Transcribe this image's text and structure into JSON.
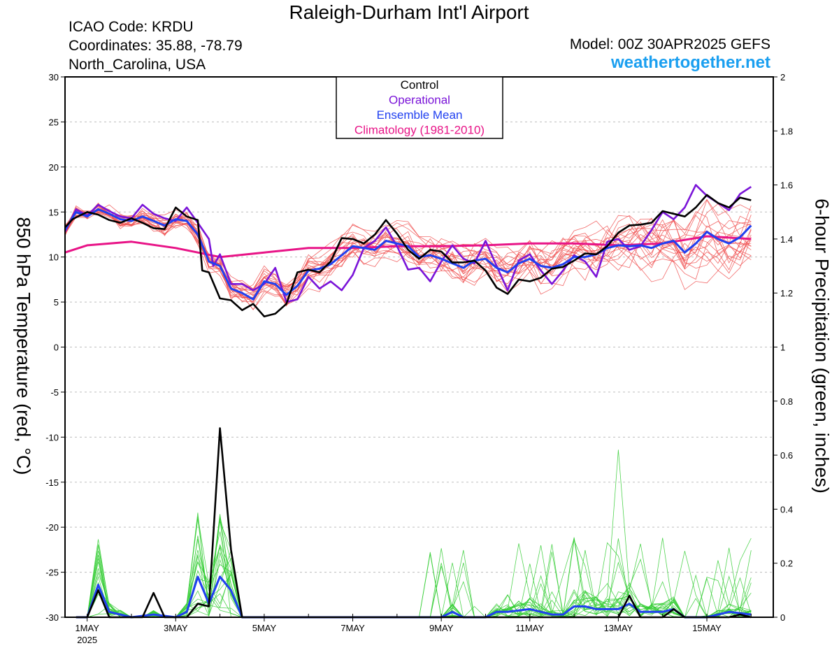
{
  "header": {
    "title": "Raleigh-Durham Int'l Airport",
    "icao": "ICAO Code: KRDU",
    "coordinates": "Coordinates: 35.88, -78.79",
    "location": "North_Carolina, USA",
    "model": "Model: 00Z 30APR2025 GEFS",
    "site": "weathertogether.net"
  },
  "colors": {
    "members_temp": "#f05050",
    "members_precip": "#33cc33",
    "control": "#000000",
    "operational": "#7a14d8",
    "ensemble_mean": "#2040f0",
    "climatology": "#e81487",
    "site": "#1a9ff0"
  },
  "chart_data": {
    "type": "line",
    "ylabel_left": "850 hPa Temperature (red, °C)",
    "ylabel_right": "6-hour Precipitation (green, inches)",
    "left_ticks": [
      "30",
      "25",
      "20",
      "15",
      "10",
      "5",
      "0",
      "-5",
      "-10",
      "-15",
      "-20",
      "-25",
      "-30"
    ],
    "right_ticks": [
      "2",
      "1.8",
      "1.6",
      "1.4",
      "1.2",
      "1",
      "0.8",
      "0.6",
      "0.4",
      "0.2",
      "0"
    ],
    "ylim_left": [
      -30,
      30
    ],
    "ylim_right": [
      0,
      2
    ],
    "x_unit": "days from 00Z 30 APR 2025",
    "xlim": [
      0.5,
      16.5
    ],
    "x_ticks": [
      {
        "x": 1,
        "label": "1MAY"
      },
      {
        "x": 3,
        "label": "3MAY"
      },
      {
        "x": 5,
        "label": "5MAY"
      },
      {
        "x": 7,
        "label": "7MAY"
      },
      {
        "x": 9,
        "label": "9MAY"
      },
      {
        "x": 11,
        "label": "11MAY"
      },
      {
        "x": 13,
        "label": "13MAY"
      },
      {
        "x": 15,
        "label": "15MAY"
      }
    ],
    "year_label": "2025",
    "legend": [
      "Control",
      "Operational",
      "Ensemble Mean",
      "Climatology (1981-2010)"
    ],
    "legend_placement": "top-center",
    "grid": "horizontal dashed",
    "temp_member_count": 20,
    "precip_member_count": 20,
    "series": [
      {
        "name": "Control",
        "kind": "temperature",
        "values": [
          [
            0.5,
            13.3
          ],
          [
            0.67,
            14.2
          ],
          [
            0.75,
            14.4
          ],
          [
            1.0,
            15.0
          ],
          [
            1.25,
            14.7
          ],
          [
            1.5,
            14.1
          ],
          [
            1.75,
            13.8
          ],
          [
            2.0,
            14.3
          ],
          [
            2.25,
            13.8
          ],
          [
            2.5,
            13.2
          ],
          [
            2.75,
            13.1
          ],
          [
            3.0,
            15.5
          ],
          [
            3.25,
            14.5
          ],
          [
            3.5,
            14.1
          ],
          [
            3.6,
            8.5
          ],
          [
            3.75,
            8.3
          ],
          [
            4.0,
            5.4
          ],
          [
            4.25,
            5.2
          ],
          [
            4.5,
            4.1
          ],
          [
            4.75,
            4.8
          ],
          [
            5.0,
            3.4
          ],
          [
            5.25,
            3.7
          ],
          [
            5.5,
            4.8
          ],
          [
            5.75,
            8.3
          ],
          [
            6.0,
            8.6
          ],
          [
            6.25,
            8.3
          ],
          [
            6.5,
            9.5
          ],
          [
            6.75,
            12.1
          ],
          [
            7.0,
            12.0
          ],
          [
            7.25,
            11.5
          ],
          [
            7.5,
            12.5
          ],
          [
            7.75,
            14.1
          ],
          [
            8.0,
            12.6
          ],
          [
            8.25,
            10.8
          ],
          [
            8.5,
            9.8
          ],
          [
            8.75,
            10.8
          ],
          [
            9.0,
            10.6
          ],
          [
            9.25,
            9.4
          ],
          [
            9.5,
            9.4
          ],
          [
            9.75,
            9.6
          ],
          [
            10.0,
            8.5
          ],
          [
            10.25,
            6.6
          ],
          [
            10.5,
            5.9
          ],
          [
            10.75,
            7.5
          ],
          [
            11.0,
            7.3
          ],
          [
            11.25,
            7.7
          ],
          [
            11.5,
            8.7
          ],
          [
            11.75,
            8.9
          ],
          [
            12.0,
            9.6
          ],
          [
            12.25,
            10.4
          ],
          [
            12.5,
            10.3
          ],
          [
            12.75,
            11.2
          ],
          [
            13.0,
            12.7
          ],
          [
            13.25,
            13.5
          ],
          [
            13.5,
            13.6
          ],
          [
            13.75,
            13.8
          ],
          [
            14.0,
            15.1
          ],
          [
            14.25,
            14.8
          ],
          [
            14.5,
            14.5
          ],
          [
            14.75,
            15.5
          ],
          [
            15.0,
            16.9
          ],
          [
            15.25,
            16.0
          ],
          [
            15.5,
            15.5
          ],
          [
            15.75,
            16.6
          ],
          [
            16.0,
            16.3
          ]
        ]
      },
      {
        "name": "Operational",
        "kind": "temperature",
        "values": [
          [
            0.5,
            12.8
          ],
          [
            0.75,
            15.3
          ],
          [
            1.0,
            14.6
          ],
          [
            1.25,
            15.8
          ],
          [
            1.5,
            15.1
          ],
          [
            1.75,
            14.5
          ],
          [
            2.0,
            14.3
          ],
          [
            2.25,
            15.8
          ],
          [
            2.5,
            14.8
          ],
          [
            2.75,
            14.3
          ],
          [
            3.0,
            14.0
          ],
          [
            3.25,
            15.5
          ],
          [
            3.5,
            13.8
          ],
          [
            3.75,
            12.0
          ],
          [
            3.85,
            9.0
          ],
          [
            4.0,
            10.3
          ],
          [
            4.25,
            7.0
          ],
          [
            4.5,
            7.0
          ],
          [
            4.75,
            6.3
          ],
          [
            5.0,
            7.0
          ],
          [
            5.25,
            8.8
          ],
          [
            5.5,
            5.0
          ],
          [
            5.75,
            5.3
          ],
          [
            6.0,
            7.8
          ],
          [
            6.25,
            6.5
          ],
          [
            6.5,
            7.3
          ],
          [
            6.75,
            6.3
          ],
          [
            7.0,
            8.0
          ],
          [
            7.25,
            11.0
          ],
          [
            7.5,
            11.8
          ],
          [
            7.75,
            13.3
          ],
          [
            8.0,
            11.2
          ],
          [
            8.25,
            8.6
          ],
          [
            8.5,
            8.8
          ],
          [
            8.75,
            7.3
          ],
          [
            9.0,
            9.5
          ],
          [
            9.25,
            11.3
          ],
          [
            9.5,
            9.8
          ],
          [
            9.75,
            9.3
          ],
          [
            10.0,
            11.8
          ],
          [
            10.25,
            9.0
          ],
          [
            10.5,
            6.3
          ],
          [
            10.75,
            9.6
          ],
          [
            11.0,
            10.3
          ],
          [
            11.25,
            8.5
          ],
          [
            11.5,
            7.0
          ],
          [
            11.75,
            8.5
          ],
          [
            12.0,
            10.2
          ],
          [
            12.25,
            9.5
          ],
          [
            12.5,
            7.8
          ],
          [
            12.75,
            11.7
          ],
          [
            13.0,
            12.0
          ],
          [
            13.25,
            10.8
          ],
          [
            13.5,
            11.2
          ],
          [
            13.75,
            13.0
          ],
          [
            14.0,
            15.0
          ],
          [
            14.25,
            14.2
          ],
          [
            14.5,
            15.5
          ],
          [
            14.75,
            18.0
          ],
          [
            15.0,
            16.8
          ],
          [
            15.25,
            16.0
          ],
          [
            15.5,
            15.2
          ],
          [
            15.75,
            17.0
          ],
          [
            16.0,
            17.8
          ]
        ]
      },
      {
        "name": "Ensemble Mean",
        "kind": "temperature",
        "values": [
          [
            0.5,
            13.0
          ],
          [
            0.75,
            15.0
          ],
          [
            1.0,
            14.5
          ],
          [
            1.25,
            15.3
          ],
          [
            1.5,
            14.8
          ],
          [
            1.75,
            14.2
          ],
          [
            2.0,
            14.0
          ],
          [
            2.25,
            14.5
          ],
          [
            2.5,
            14.0
          ],
          [
            2.75,
            13.5
          ],
          [
            3.0,
            14.2
          ],
          [
            3.25,
            14.0
          ],
          [
            3.5,
            12.5
          ],
          [
            3.75,
            9.5
          ],
          [
            4.0,
            9.0
          ],
          [
            4.25,
            6.5
          ],
          [
            4.5,
            6.0
          ],
          [
            4.75,
            5.3
          ],
          [
            5.0,
            7.3
          ],
          [
            5.25,
            7.0
          ],
          [
            5.5,
            5.8
          ],
          [
            5.75,
            6.8
          ],
          [
            6.0,
            8.5
          ],
          [
            6.25,
            8.7
          ],
          [
            6.5,
            9.2
          ],
          [
            6.75,
            10.2
          ],
          [
            7.0,
            11.2
          ],
          [
            7.25,
            11.0
          ],
          [
            7.5,
            10.8
          ],
          [
            7.75,
            11.8
          ],
          [
            8.0,
            11.5
          ],
          [
            8.25,
            11.2
          ],
          [
            8.5,
            10.0
          ],
          [
            8.75,
            10.2
          ],
          [
            9.0,
            9.8
          ],
          [
            9.25,
            9.3
          ],
          [
            9.5,
            8.8
          ],
          [
            9.75,
            9.6
          ],
          [
            10.0,
            9.8
          ],
          [
            10.25,
            8.8
          ],
          [
            10.5,
            8.3
          ],
          [
            10.75,
            9.3
          ],
          [
            11.0,
            9.8
          ],
          [
            11.25,
            9.0
          ],
          [
            11.5,
            8.8
          ],
          [
            11.75,
            9.2
          ],
          [
            12.0,
            10.0
          ],
          [
            12.25,
            10.0
          ],
          [
            12.5,
            10.3
          ],
          [
            12.75,
            11.0
          ],
          [
            13.0,
            11.3
          ],
          [
            13.25,
            11.2
          ],
          [
            13.5,
            11.3
          ],
          [
            13.75,
            11.0
          ],
          [
            14.0,
            11.5
          ],
          [
            14.25,
            11.8
          ],
          [
            14.5,
            10.5
          ],
          [
            14.75,
            11.5
          ],
          [
            15.0,
            12.8
          ],
          [
            15.25,
            12.0
          ],
          [
            15.5,
            11.5
          ],
          [
            15.75,
            12.2
          ],
          [
            16.0,
            13.5
          ]
        ]
      },
      {
        "name": "Climatology (1981-2010)",
        "kind": "temperature",
        "values": [
          [
            0.5,
            10.5
          ],
          [
            1.0,
            11.3
          ],
          [
            2.0,
            11.7
          ],
          [
            3.0,
            11.0
          ],
          [
            3.5,
            10.5
          ],
          [
            4.0,
            10.0
          ],
          [
            5.0,
            10.5
          ],
          [
            6.0,
            11.0
          ],
          [
            7.0,
            11.0
          ],
          [
            8.0,
            11.2
          ],
          [
            9.0,
            11.2
          ],
          [
            10.0,
            11.3
          ],
          [
            11.0,
            11.5
          ],
          [
            12.0,
            11.5
          ],
          [
            13.0,
            11.3
          ],
          [
            14.0,
            11.5
          ],
          [
            15.0,
            12.3
          ],
          [
            16.0,
            12.0
          ]
        ]
      },
      {
        "name": "Control",
        "kind": "precipitation",
        "values": [
          [
            0.75,
            0.0
          ],
          [
            1.0,
            0.0
          ],
          [
            1.25,
            0.1
          ],
          [
            1.5,
            0.0
          ],
          [
            2.0,
            0.0
          ],
          [
            2.25,
            0.0
          ],
          [
            2.5,
            0.09
          ],
          [
            2.75,
            0.0
          ],
          [
            3.0,
            0.0
          ],
          [
            3.25,
            0.0
          ],
          [
            3.5,
            0.05
          ],
          [
            3.75,
            0.04
          ],
          [
            4.0,
            0.7
          ],
          [
            4.25,
            0.25
          ],
          [
            4.5,
            0.0
          ],
          [
            5.0,
            0.0
          ],
          [
            12.0,
            0.0
          ],
          [
            12.25,
            0.0
          ],
          [
            12.5,
            0.0
          ],
          [
            12.75,
            0.0
          ],
          [
            13.0,
            0.0
          ],
          [
            13.25,
            0.08
          ],
          [
            13.5,
            0.0
          ],
          [
            14.0,
            0.0
          ],
          [
            14.25,
            0.03
          ],
          [
            14.5,
            0.0
          ],
          [
            15.0,
            0.0
          ],
          [
            15.5,
            0.0
          ],
          [
            15.75,
            0.01
          ],
          [
            16.0,
            0.0
          ]
        ]
      },
      {
        "name": "Ensemble Mean",
        "kind": "precipitation",
        "values": [
          [
            0.75,
            0.0
          ],
          [
            1.0,
            0.0
          ],
          [
            1.25,
            0.12
          ],
          [
            1.5,
            0.02
          ],
          [
            2.0,
            0.0
          ],
          [
            2.5,
            0.01
          ],
          [
            3.0,
            0.0
          ],
          [
            3.25,
            0.02
          ],
          [
            3.5,
            0.15
          ],
          [
            3.75,
            0.05
          ],
          [
            4.0,
            0.15
          ],
          [
            4.25,
            0.1
          ],
          [
            4.5,
            0.0
          ],
          [
            5.0,
            0.0
          ],
          [
            8.75,
            0.0
          ],
          [
            9.0,
            0.0
          ],
          [
            9.25,
            0.02
          ],
          [
            9.5,
            0.0
          ],
          [
            10.0,
            0.0
          ],
          [
            10.25,
            0.02
          ],
          [
            10.5,
            0.02
          ],
          [
            11.0,
            0.03
          ],
          [
            11.5,
            0.01
          ],
          [
            11.75,
            0.01
          ],
          [
            12.0,
            0.04
          ],
          [
            12.25,
            0.04
          ],
          [
            12.5,
            0.03
          ],
          [
            12.75,
            0.03
          ],
          [
            13.0,
            0.03
          ],
          [
            13.25,
            0.05
          ],
          [
            13.5,
            0.02
          ],
          [
            14.0,
            0.02
          ],
          [
            14.25,
            0.03
          ],
          [
            14.5,
            0.0
          ],
          [
            15.0,
            0.0
          ],
          [
            15.5,
            0.02
          ],
          [
            16.0,
            0.01
          ]
        ]
      }
    ]
  }
}
